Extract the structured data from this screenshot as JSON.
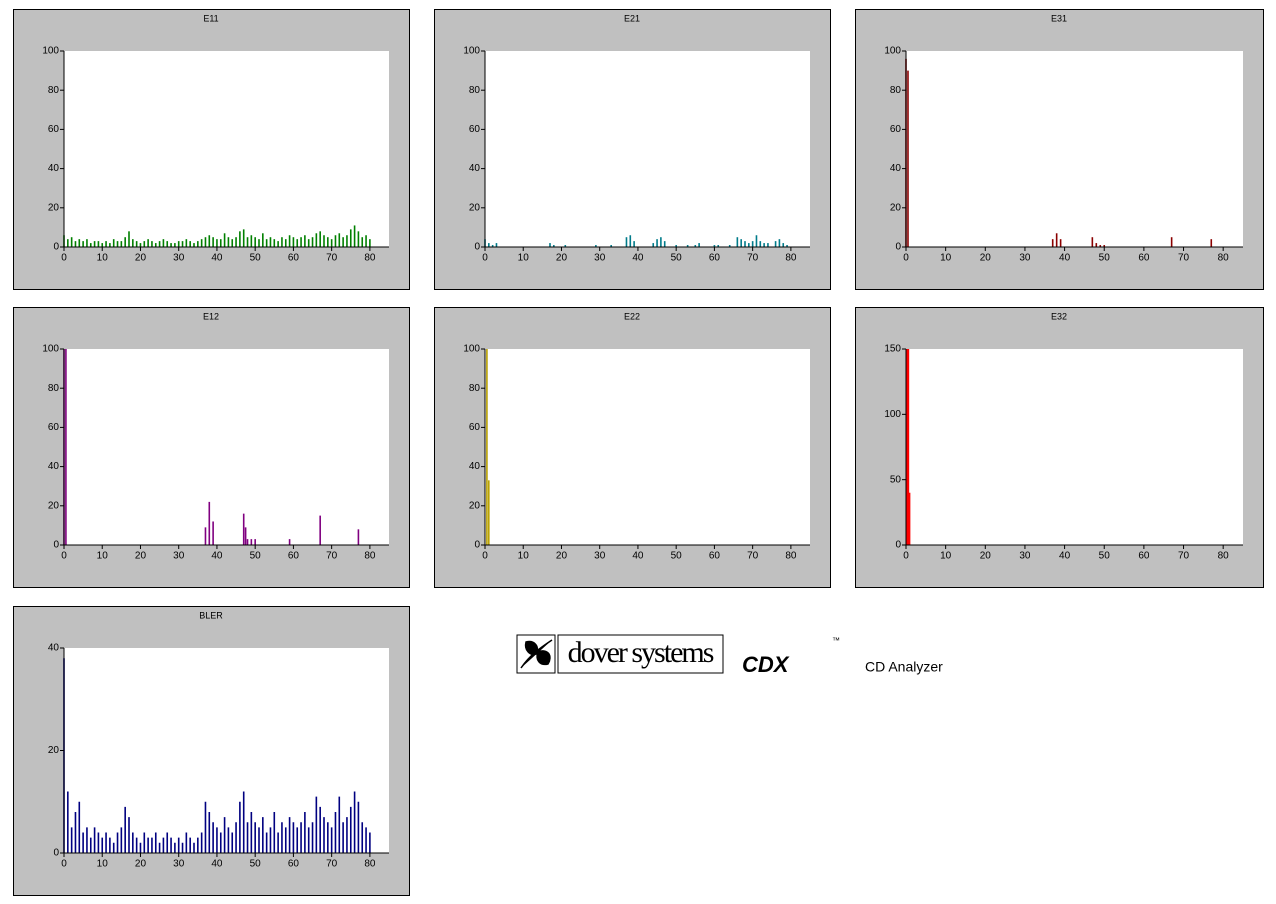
{
  "chart_data": [
    {
      "type": "bar",
      "title": "E11",
      "color": "#008000",
      "xlim": [
        0,
        85
      ],
      "ylim": [
        0,
        100
      ],
      "xticks": [
        0,
        10,
        20,
        30,
        40,
        50,
        60,
        70,
        80
      ],
      "yticks": [
        0,
        20,
        40,
        60,
        80,
        100
      ],
      "x": [
        0,
        1,
        2,
        3,
        4,
        5,
        6,
        7,
        8,
        9,
        10,
        11,
        12,
        13,
        14,
        15,
        16,
        17,
        18,
        19,
        20,
        21,
        22,
        23,
        24,
        25,
        26,
        27,
        28,
        29,
        30,
        31,
        32,
        33,
        34,
        35,
        36,
        37,
        38,
        39,
        40,
        41,
        42,
        43,
        44,
        45,
        46,
        47,
        48,
        49,
        50,
        51,
        52,
        53,
        54,
        55,
        56,
        57,
        58,
        59,
        60,
        61,
        62,
        63,
        64,
        65,
        66,
        67,
        68,
        69,
        70,
        71,
        72,
        73,
        74,
        75,
        76,
        77,
        78,
        79,
        80
      ],
      "values": [
        6,
        4,
        5,
        3,
        4,
        3,
        4,
        2,
        3,
        3,
        2,
        3,
        2,
        4,
        3,
        3,
        5,
        8,
        4,
        3,
        2,
        3,
        4,
        3,
        2,
        3,
        4,
        3,
        2,
        2,
        3,
        3,
        4,
        3,
        2,
        3,
        4,
        5,
        6,
        5,
        4,
        4,
        7,
        5,
        4,
        5,
        8,
        9,
        5,
        6,
        5,
        4,
        7,
        4,
        5,
        4,
        3,
        5,
        4,
        6,
        5,
        4,
        5,
        6,
        4,
        5,
        7,
        8,
        6,
        5,
        4,
        6,
        7,
        5,
        6,
        9,
        11,
        8,
        5,
        6,
        4
      ]
    },
    {
      "type": "bar",
      "title": "E21",
      "color": "#007b8a",
      "xlim": [
        0,
        85
      ],
      "ylim": [
        0,
        100
      ],
      "xticks": [
        0,
        10,
        20,
        30,
        40,
        50,
        60,
        70,
        80
      ],
      "yticks": [
        0,
        20,
        40,
        60,
        80,
        100
      ],
      "x": [
        0,
        1,
        2,
        3,
        17,
        18,
        21,
        29,
        33,
        37,
        38,
        39,
        44,
        45,
        46,
        47,
        50,
        53,
        55,
        56,
        60,
        61,
        64,
        66,
        67,
        68,
        69,
        70,
        71,
        72,
        73,
        74,
        76,
        77,
        78,
        79
      ],
      "values": [
        4,
        2,
        1,
        2,
        2,
        1,
        1,
        1,
        1,
        5,
        6,
        3,
        2,
        4,
        5,
        3,
        1,
        1,
        1,
        2,
        1,
        1,
        1,
        5,
        4,
        3,
        2,
        3,
        6,
        3,
        2,
        2,
        3,
        4,
        2,
        1
      ]
    },
    {
      "type": "bar",
      "title": "E31",
      "color": "#8b0000",
      "xlim": [
        0,
        85
      ],
      "ylim": [
        0,
        100
      ],
      "xticks": [
        0,
        10,
        20,
        30,
        40,
        50,
        60,
        70,
        80
      ],
      "yticks": [
        0,
        20,
        40,
        60,
        80,
        100
      ],
      "x": [
        0,
        0.5,
        37,
        38,
        39,
        47,
        48,
        49,
        50,
        67,
        77
      ],
      "values": [
        96,
        90,
        4,
        7,
        4,
        5,
        2,
        1,
        1,
        5,
        4
      ]
    },
    {
      "type": "bar",
      "title": "E12",
      "color": "#800080",
      "xlim": [
        0,
        85
      ],
      "ylim": [
        0,
        100
      ],
      "xticks": [
        0,
        10,
        20,
        30,
        40,
        50,
        60,
        70,
        80
      ],
      "yticks": [
        0,
        20,
        40,
        60,
        80,
        100
      ],
      "x": [
        0,
        0.5,
        37,
        38,
        39,
        47,
        47.5,
        48,
        49,
        50,
        59,
        67,
        77
      ],
      "values": [
        100,
        100,
        9,
        22,
        12,
        16,
        9,
        3,
        3,
        3,
        3,
        15,
        8
      ]
    },
    {
      "type": "bar",
      "title": "E22",
      "color": "#b8a000",
      "xlim": [
        0,
        85
      ],
      "ylim": [
        0,
        100
      ],
      "xticks": [
        0,
        10,
        20,
        30,
        40,
        50,
        60,
        70,
        80
      ],
      "yticks": [
        0,
        20,
        40,
        60,
        80,
        100
      ],
      "x": [
        0.5,
        1
      ],
      "values": [
        100,
        33
      ]
    },
    {
      "type": "bar",
      "title": "E32",
      "color": "#ff0000",
      "xlim": [
        0,
        85
      ],
      "ylim": [
        0,
        150
      ],
      "xticks": [
        0,
        10,
        20,
        30,
        40,
        50,
        60,
        70,
        80
      ],
      "yticks": [
        0,
        50,
        100,
        150
      ],
      "x": [
        0.3,
        0.6,
        0.9
      ],
      "values": [
        150,
        150,
        40
      ]
    },
    {
      "type": "bar",
      "title": "BLER",
      "color": "#000080",
      "xlim": [
        0,
        85
      ],
      "ylim": [
        0,
        40
      ],
      "xticks": [
        0,
        10,
        20,
        30,
        40,
        50,
        60,
        70,
        80
      ],
      "yticks": [
        0,
        20,
        40
      ],
      "x": [
        0,
        1,
        2,
        3,
        4,
        5,
        6,
        7,
        8,
        9,
        10,
        11,
        12,
        13,
        14,
        15,
        16,
        17,
        18,
        19,
        20,
        21,
        22,
        23,
        24,
        25,
        26,
        27,
        28,
        29,
        30,
        31,
        32,
        33,
        34,
        35,
        36,
        37,
        38,
        39,
        40,
        41,
        42,
        43,
        44,
        45,
        46,
        47,
        48,
        49,
        50,
        51,
        52,
        53,
        54,
        55,
        56,
        57,
        58,
        59,
        60,
        61,
        62,
        63,
        64,
        65,
        66,
        67,
        68,
        69,
        70,
        71,
        72,
        73,
        74,
        75,
        76,
        77,
        78,
        79,
        80
      ],
      "values": [
        38,
        12,
        5,
        8,
        10,
        4,
        5,
        3,
        5,
        4,
        3,
        4,
        3,
        2,
        4,
        5,
        9,
        7,
        4,
        3,
        2,
        4,
        3,
        3,
        4,
        2,
        3,
        4,
        3,
        2,
        3,
        2,
        4,
        3,
        2,
        3,
        4,
        10,
        8,
        6,
        5,
        4,
        7,
        5,
        4,
        6,
        10,
        12,
        6,
        8,
        6,
        5,
        7,
        4,
        5,
        8,
        4,
        6,
        5,
        7,
        6,
        5,
        6,
        8,
        5,
        6,
        11,
        9,
        7,
        6,
        5,
        8,
        11,
        6,
        7,
        9,
        12,
        10,
        6,
        5,
        4
      ]
    }
  ],
  "branding": {
    "company": "dover systems",
    "product": "CDX",
    "trademark": "™",
    "subtitle": "CD Analyzer"
  }
}
